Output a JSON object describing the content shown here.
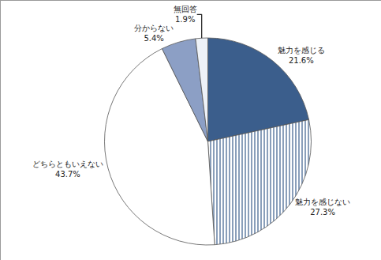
{
  "chart_data": {
    "type": "pie",
    "categories": [
      "魅力を感じる",
      "魅力を感じない",
      "どちらともいえない",
      "分からない",
      "無回答"
    ],
    "values": [
      21.6,
      27.3,
      43.7,
      5.4,
      1.9
    ],
    "value_labels": [
      "21.6%",
      "27.3%",
      "43.7%",
      "5.4%",
      "1.9%"
    ],
    "colors": [
      "#3b5e8c",
      "#ffffff",
      "#ffffff",
      "#8c9fc5",
      "#eef2f8"
    ],
    "data_labels": true
  }
}
